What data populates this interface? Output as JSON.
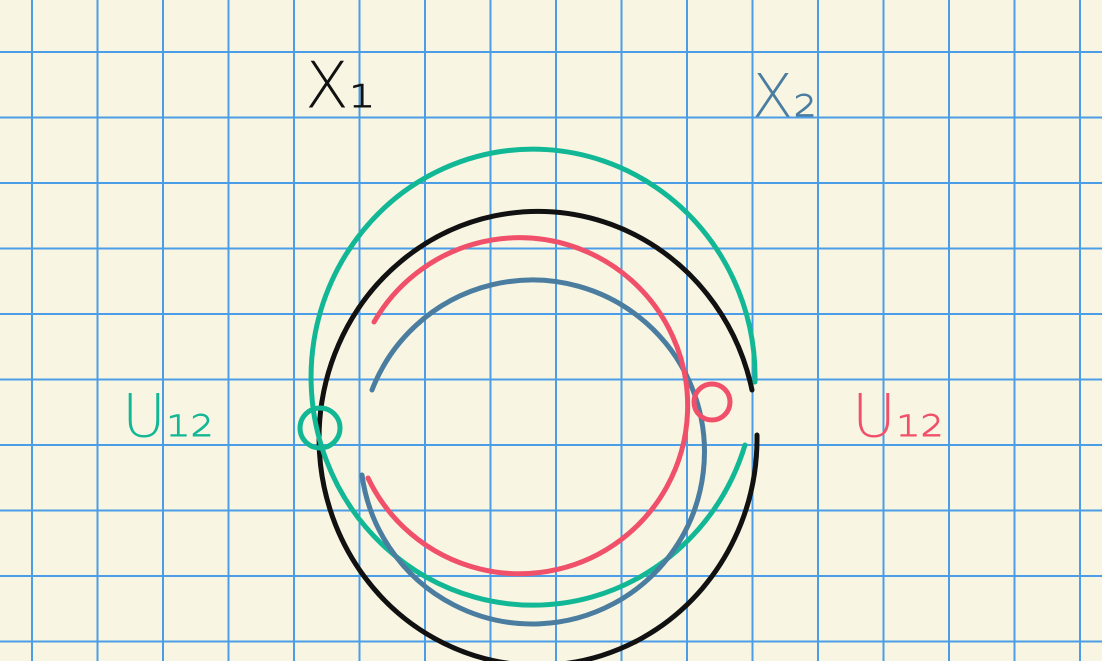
{
  "labels": [
    {
      "text": "X₁"
    },
    {
      "text": "X₂"
    },
    {
      "text": "U₁₂"
    },
    {
      "text": "U₁₂"
    }
  ]
}
